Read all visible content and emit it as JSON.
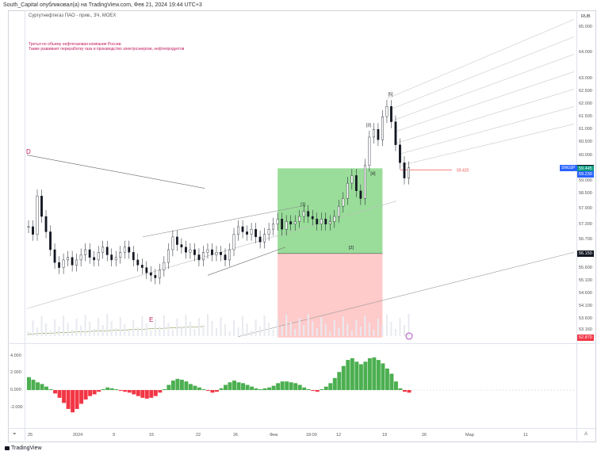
{
  "header": {
    "caption": "South_Capital опубликовал(а) на TradingView.com, Фев 21, 2024 19:44 UTC+3"
  },
  "chart_title": "Сургутнефтегаз ПАО - прив., 3Ч, MOEX",
  "description": [
    "Третья по объему нефтегазовая компания России.",
    "Также развивает переработку газа и производство электроэнергии, нефтепродуктов"
  ],
  "footer": {
    "brand": "TradingView",
    "logo_icon": "tradingview-logo-icon"
  },
  "colors": {
    "up_candle": "#26a69a",
    "down_candle": "#ef5350",
    "profit_zone": "#6fcf6f",
    "loss_zone": "#ffb3b3",
    "hist_up": "#4caf50",
    "hist_down": "#f23645",
    "ticker": "#2962ff",
    "wave_label": "#c2185b"
  },
  "chart_data": {
    "type": "candlestick",
    "currency": "RUB",
    "price_ticks": [
      "65.000",
      "64.000",
      "63.000",
      "62.500",
      "62.000",
      "61.500",
      "61.000",
      "60.500",
      "60.000",
      "59.000",
      "58.500",
      "57.900",
      "57.300",
      "56.700",
      "55.600",
      "55.100",
      "54.600",
      "54.100",
      "53.600",
      "53.160"
    ],
    "ylim": [
      52.8,
      65.5
    ],
    "time_ticks": [
      "25",
      "2024",
      "9",
      "15",
      "22",
      "26",
      "Фев",
      "18:00",
      "12",
      "19",
      "26",
      "Мар",
      "11"
    ],
    "ticker": "SNGSP",
    "badges": [
      {
        "text": "59.480",
        "price": 59.48,
        "color": "#131722"
      },
      {
        "text": "59.445",
        "price": 59.445,
        "color": "#089981"
      },
      {
        "text": "59.230",
        "price": 59.23,
        "color": "#2962ff"
      },
      {
        "text": "56.150",
        "price": 56.15,
        "color": "#131722"
      },
      {
        "text": "52.870",
        "price": 52.87,
        "color": "#f23645"
      }
    ],
    "stop_level": {
      "label": "59.420",
      "price": 59.42
    },
    "close_series": [
      57.2,
      56.9,
      58.4,
      57.6,
      57.0,
      56.3,
      55.8,
      55.6,
      55.9,
      56.0,
      55.7,
      55.9,
      56.1,
      56.3,
      56.0,
      55.9,
      56.2,
      56.4,
      56.1,
      55.9,
      56.0,
      56.2,
      56.4,
      56.2,
      55.9,
      55.7,
      55.6,
      55.4,
      55.3,
      55.2,
      55.5,
      55.8,
      56.3,
      56.8,
      56.5,
      56.4,
      56.2,
      56.3,
      56.1,
      55.9,
      56.2,
      56.3,
      56.1,
      56.2,
      56.1,
      55.9,
      56.3,
      56.9,
      57.2,
      57.0,
      56.9,
      57.1,
      56.8,
      56.6,
      56.9,
      57.1,
      57.3,
      57.5,
      57.1,
      57.4,
      57.3,
      57.4,
      57.6,
      57.8,
      57.6,
      57.5,
      57.3,
      57.5,
      57.3,
      57.4,
      57.6,
      58.0,
      58.3,
      58.9,
      59.2,
      58.6,
      58.3,
      59.6,
      60.7,
      61.0,
      60.6,
      61.5,
      61.9,
      61.3,
      60.4,
      59.7,
      59.1,
      59.5
    ],
    "waves": [
      {
        "label": "D",
        "price": 60.0,
        "index": 0
      },
      {
        "label": "E",
        "price": 53.8,
        "index": 30
      },
      {
        "label": "[1]",
        "price": 57.9,
        "index": 63
      },
      {
        "label": "[2]",
        "price": 56.2,
        "index": 74
      },
      {
        "label": "[3]",
        "price": 61.0,
        "index": 78
      },
      {
        "label": "[4]",
        "price": 59.1,
        "index": 79
      },
      {
        "label": "[5]",
        "price": 62.2,
        "index": 83
      }
    ],
    "position": {
      "entry": 56.15,
      "target": 59.48,
      "stop": 52.87
    },
    "oscillator": {
      "ticks": [
        "4.000",
        "2.000",
        "0.000",
        "-2.000"
      ],
      "ylim": [
        -3.5,
        4.8
      ],
      "values": [
        1.5,
        1.2,
        0.9,
        0.7,
        0.4,
        0.1,
        -0.4,
        -0.9,
        -1.5,
        -2.2,
        -2.6,
        -2.2,
        -1.6,
        -1.1,
        -0.7,
        -0.5,
        -0.2,
        0.1,
        0.3,
        0.2,
        0.1,
        -0.1,
        -0.2,
        -0.3,
        -0.5,
        -0.7,
        -0.9,
        -1.0,
        -0.9,
        -0.7,
        -0.3,
        0.1,
        0.6,
        1.1,
        1.3,
        1.2,
        1.0,
        0.7,
        0.5,
        0.3,
        0.1,
        -0.1,
        -0.3,
        -0.2,
        0.2,
        0.6,
        0.9,
        1.1,
        0.9,
        0.8,
        0.6,
        0.4,
        0.2,
        0.1,
        0.2,
        0.3,
        0.5,
        0.8,
        1.0,
        1.0,
        0.9,
        0.8,
        0.6,
        0.3,
        0.1,
        -0.1,
        -0.2,
        0.1,
        0.4,
        0.8,
        1.4,
        2.1,
        2.8,
        3.5,
        3.7,
        3.3,
        3.0,
        3.3,
        3.7,
        3.8,
        3.5,
        3.1,
        2.5,
        1.9,
        1.0,
        0.2,
        -0.2,
        -0.3
      ]
    }
  }
}
